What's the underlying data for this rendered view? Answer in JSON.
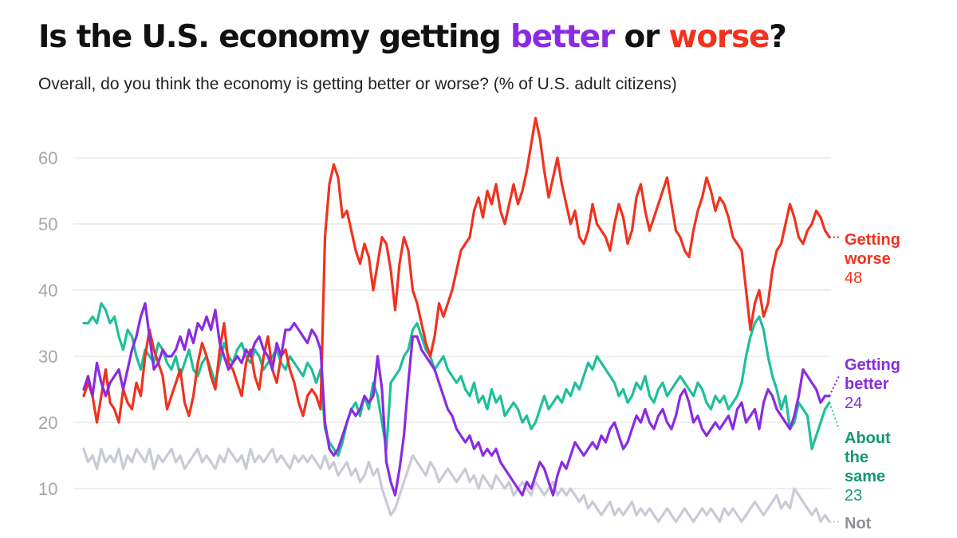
{
  "header": {
    "title_prefix": "Is the U.S. economy getting ",
    "title_better": "better",
    "title_or": " or ",
    "title_worse": "worse",
    "title_suffix": "?",
    "subtitle": "Overall, do you think the economy is getting better or worse? (% of U.S. adult citizens)"
  },
  "colors": {
    "better": "#8a2be2",
    "worse": "#f0321e",
    "same": "#1fbf9a",
    "same_label": "#139873",
    "not_sure": "#c8cbd6",
    "not_sure_label": "#8e9098"
  },
  "chart_data": {
    "type": "line",
    "title": "Is the U.S. economy getting better or worse?",
    "subtitle": "Overall, do you think the economy is getting better or worse? (% of U.S. adult citizens)",
    "ylim": [
      5,
      67
    ],
    "yticks": [
      10,
      20,
      30,
      40,
      50,
      60
    ],
    "grid": true,
    "legend": "direct-labels-right",
    "series": [
      {
        "key": "worse",
        "line1": "Getting",
        "line2": "worse",
        "last": "48",
        "end_value": 48,
        "values": [
          24,
          26,
          24,
          20,
          24,
          28,
          23,
          22,
          20,
          25,
          23,
          22,
          26,
          24,
          30,
          34,
          31,
          29,
          27,
          22,
          24,
          26,
          28,
          23,
          21,
          24,
          29,
          32,
          30,
          27,
          25,
          31,
          35,
          29,
          28,
          26,
          24,
          29,
          31,
          27,
          25,
          30,
          33,
          28,
          26,
          30,
          31,
          28,
          26,
          23,
          21,
          24,
          25,
          24,
          22,
          48,
          56,
          59,
          57,
          51,
          52,
          49,
          46,
          44,
          47,
          45,
          40,
          44,
          48,
          47,
          43,
          37,
          44,
          48,
          46,
          40,
          38,
          35,
          32,
          30,
          33,
          38,
          36,
          38,
          40,
          43,
          46,
          47,
          48,
          52,
          54,
          51,
          55,
          53,
          56,
          52,
          50,
          53,
          56,
          53,
          55,
          58,
          62,
          66,
          63,
          58,
          54,
          57,
          60,
          56,
          53,
          50,
          52,
          48,
          47,
          49,
          53,
          50,
          49,
          48,
          46,
          50,
          53,
          51,
          47,
          49,
          54,
          56,
          52,
          49,
          51,
          53,
          55,
          57,
          53,
          49,
          48,
          46,
          45,
          49,
          52,
          54,
          57,
          55,
          52,
          54,
          53,
          51,
          48,
          47,
          46,
          40,
          34,
          38,
          40,
          36,
          38,
          43,
          46,
          47,
          50,
          53,
          51,
          48,
          47,
          49,
          50,
          52,
          51,
          49,
          48
        ]
      },
      {
        "key": "better",
        "line1": "Getting",
        "line2": "better",
        "last": "24",
        "end_value": 27,
        "values": [
          25,
          27,
          24,
          29,
          26,
          24,
          26,
          27,
          28,
          25,
          28,
          31,
          33,
          36,
          38,
          33,
          28,
          29,
          31,
          30,
          30,
          31,
          33,
          31,
          34,
          32,
          35,
          34,
          36,
          34,
          37,
          32,
          30,
          28,
          29,
          30,
          29,
          31,
          30,
          32,
          33,
          31,
          30,
          28,
          32,
          30,
          34,
          34,
          35,
          34,
          33,
          32,
          34,
          33,
          31,
          20,
          16,
          15,
          16,
          18,
          20,
          22,
          21,
          22,
          24,
          23,
          24,
          30,
          25,
          14,
          11,
          9,
          13,
          18,
          26,
          33,
          33,
          31,
          30,
          29,
          28,
          26,
          24,
          22,
          21,
          19,
          18,
          17,
          18,
          16,
          17,
          15,
          16,
          15,
          16,
          14,
          13,
          12,
          11,
          10,
          9,
          11,
          10,
          12,
          14,
          13,
          11,
          9,
          12,
          14,
          13,
          15,
          17,
          16,
          15,
          16,
          17,
          16,
          18,
          17,
          19,
          20,
          18,
          16,
          17,
          19,
          21,
          20,
          22,
          20,
          19,
          21,
          22,
          20,
          19,
          21,
          24,
          25,
          23,
          20,
          21,
          19,
          18,
          19,
          20,
          19,
          20,
          21,
          19,
          22,
          23,
          20,
          21,
          22,
          19,
          23,
          25,
          24,
          22,
          21,
          20,
          19,
          21,
          24,
          28,
          27,
          26,
          25,
          23,
          24,
          24
        ]
      },
      {
        "key": "same",
        "line1": "About",
        "line2": "the",
        "line3": "same",
        "last": "23",
        "end_value": 19,
        "values": [
          35,
          35,
          36,
          35,
          38,
          37,
          35,
          36,
          33,
          31,
          34,
          33,
          30,
          28,
          31,
          30,
          29,
          32,
          31,
          29,
          28,
          30,
          27,
          29,
          31,
          28,
          27,
          29,
          30,
          28,
          26,
          29,
          32,
          30,
          29,
          31,
          32,
          30,
          29,
          31,
          30,
          28,
          29,
          30,
          31,
          29,
          28,
          30,
          29,
          28,
          27,
          29,
          28,
          26,
          28,
          19,
          17,
          16,
          15,
          17,
          20,
          22,
          23,
          21,
          24,
          22,
          26,
          24,
          20,
          16,
          26,
          27,
          28,
          30,
          31,
          34,
          35,
          33,
          31,
          30,
          28,
          29,
          30,
          28,
          27,
          26,
          27,
          25,
          24,
          26,
          23,
          24,
          22,
          25,
          23,
          24,
          21,
          22,
          23,
          22,
          20,
          21,
          19,
          20,
          22,
          24,
          22,
          23,
          24,
          23,
          25,
          24,
          26,
          25,
          27,
          29,
          28,
          30,
          29,
          28,
          27,
          26,
          24,
          25,
          23,
          24,
          26,
          25,
          27,
          24,
          23,
          25,
          26,
          24,
          25,
          26,
          27,
          26,
          25,
          24,
          26,
          25,
          23,
          22,
          24,
          23,
          24,
          22,
          23,
          24,
          26,
          30,
          33,
          35,
          36,
          34,
          30,
          27,
          25,
          22,
          24,
          19,
          20,
          23,
          22,
          21,
          16,
          18,
          20,
          22,
          23
        ]
      },
      {
        "key": "not_sure",
        "line1": "Not",
        "last": "",
        "end_value": 5,
        "values": [
          16,
          14,
          15,
          13,
          16,
          14,
          15,
          14,
          16,
          13,
          15,
          14,
          16,
          15,
          14,
          16,
          13,
          15,
          14,
          15,
          16,
          14,
          15,
          13,
          14,
          15,
          16,
          14,
          15,
          14,
          13,
          15,
          14,
          16,
          15,
          14,
          15,
          13,
          16,
          14,
          15,
          14,
          15,
          16,
          14,
          15,
          14,
          13,
          15,
          14,
          15,
          14,
          15,
          14,
          13,
          15,
          13,
          14,
          12,
          13,
          14,
          12,
          13,
          11,
          12,
          14,
          12,
          13,
          10,
          8,
          6,
          7,
          9,
          11,
          13,
          15,
          14,
          13,
          12,
          14,
          13,
          11,
          12,
          13,
          12,
          11,
          12,
          13,
          11,
          12,
          10,
          12,
          11,
          10,
          12,
          11,
          10,
          11,
          9,
          10,
          11,
          10,
          9,
          11,
          10,
          9,
          10,
          11,
          9,
          10,
          9,
          10,
          9,
          8,
          9,
          7,
          8,
          7,
          6,
          7,
          8,
          6,
          7,
          6,
          7,
          8,
          6,
          7,
          6,
          7,
          6,
          5,
          6,
          7,
          6,
          5,
          6,
          7,
          6,
          5,
          6,
          7,
          6,
          7,
          6,
          5,
          7,
          6,
          7,
          6,
          5,
          6,
          7,
          8,
          7,
          6,
          7,
          8,
          9,
          7,
          8,
          7,
          10,
          9,
          8,
          7,
          6,
          7,
          5,
          6,
          5
        ]
      }
    ]
  }
}
